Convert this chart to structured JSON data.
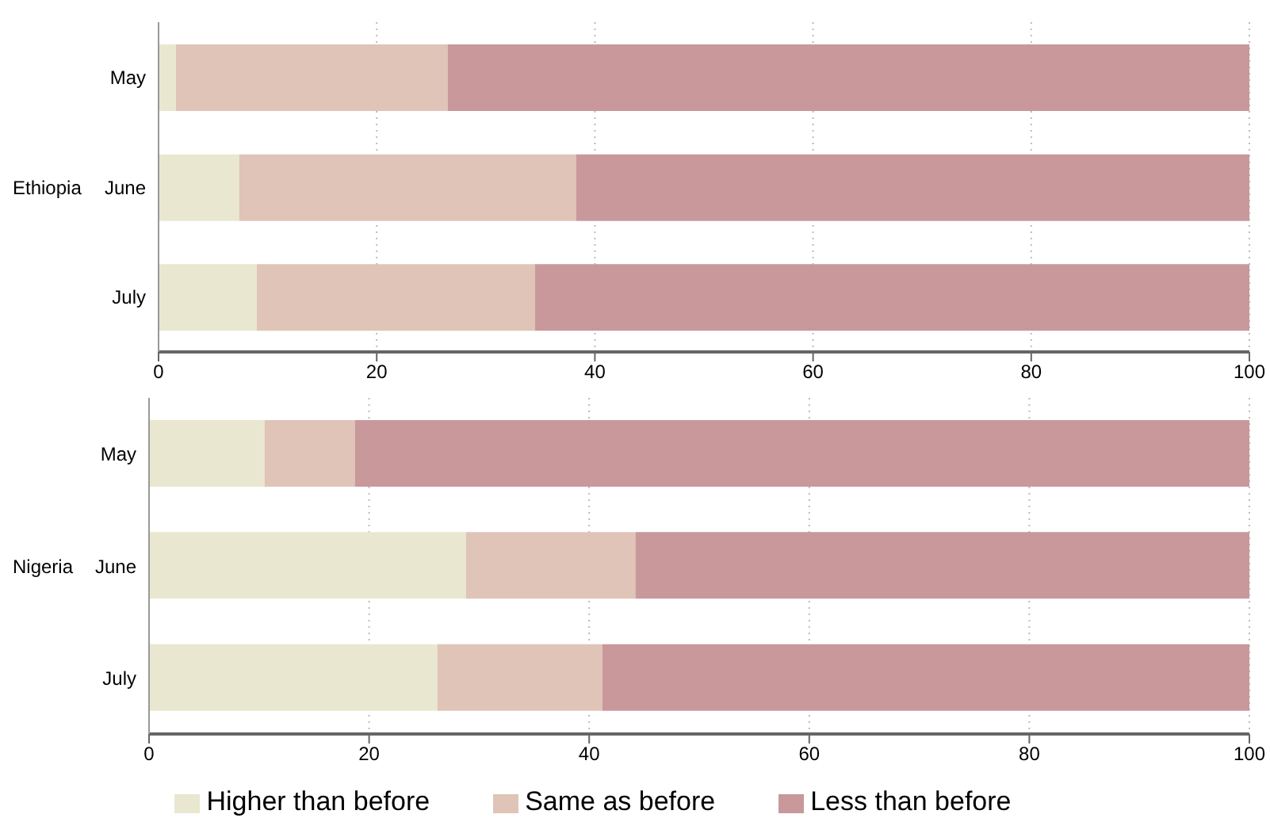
{
  "chart_data": [
    {
      "type": "bar",
      "orientation": "horizontal",
      "stacked": true,
      "ylabel": "Ethiopia",
      "categories": [
        "May",
        "June",
        "July"
      ],
      "series": [
        {
          "color": "#e9e7cf",
          "values": [
            1.6,
            7.4,
            9.0
          ]
        },
        {
          "color": "#dfc4b7",
          "values": [
            24.9,
            30.9,
            25.5
          ]
        },
        {
          "color": "#c8989b",
          "values": [
            73.5,
            61.7,
            65.5
          ]
        }
      ],
      "xlim": [
        0,
        100
      ],
      "xticks": [
        0,
        20,
        40,
        60,
        80,
        100
      ],
      "grid": "x",
      "legend": false
    },
    {
      "type": "bar",
      "orientation": "horizontal",
      "stacked": true,
      "ylabel": "Nigeria",
      "categories": [
        "May",
        "June",
        "July"
      ],
      "series": [
        {
          "name": "Higher than before",
          "color": "#e9e7cf",
          "values": [
            10.5,
            28.8,
            26.2
          ]
        },
        {
          "name": "Same as before",
          "color": "#dfc4b7",
          "values": [
            8.2,
            15.4,
            15.0
          ]
        },
        {
          "name": "Less than before",
          "color": "#c8989b",
          "values": [
            81.3,
            55.8,
            58.8
          ]
        }
      ],
      "xlim": [
        0,
        100
      ],
      "xticks": [
        0,
        20,
        40,
        60,
        80,
        100
      ],
      "grid": "x",
      "legend": "bottom"
    }
  ]
}
